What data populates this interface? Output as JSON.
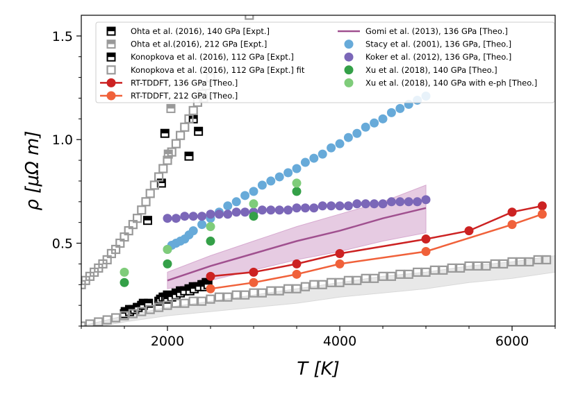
{
  "chart_data": {
    "type": "scatter",
    "xlabel": "T [K]",
    "ylabel": "ρ [μΩ m]",
    "xlim": [
      1000,
      6500
    ],
    "ylim": [
      0.1,
      1.6
    ],
    "xticks": [
      2000,
      4000,
      6000
    ],
    "xtick_labels": [
      "2000",
      "4000",
      "6000"
    ],
    "yticks": [
      0.5,
      1.0,
      1.5
    ],
    "ytick_labels": [
      "0.5",
      "1.0",
      "1.5"
    ],
    "grid": false,
    "legend_position": "top",
    "series": [
      {
        "name": "Ohta et al. (2016), 140 GPa [Expt.]",
        "color": "#000000",
        "marker": "half-square",
        "x": [
          1510,
          1560,
          1600,
          1650,
          1700,
          1720,
          1900,
          1920,
          1950,
          1980,
          2000,
          2100,
          2150,
          2200,
          2250,
          2300,
          2350,
          2400,
          2420,
          2430,
          2450,
          2460,
          1770,
          1930,
          1970,
          2250,
          2300,
          2360
        ],
        "y": [
          0.17,
          0.18,
          0.18,
          0.19,
          0.2,
          0.21,
          0.22,
          0.23,
          0.24,
          0.24,
          0.25,
          0.26,
          0.27,
          0.27,
          0.28,
          0.29,
          0.29,
          0.3,
          0.3,
          0.3,
          0.31,
          0.31,
          0.61,
          0.79,
          1.03,
          0.92,
          1.1,
          1.04
        ]
      },
      {
        "name": "Ohta et al.(2016), 212 GPa [Expt.]",
        "color": "#999999",
        "marker": "half-square",
        "x": [
          2010,
          2040,
          2420
        ],
        "y": [
          0.93,
          1.15,
          1.2
        ]
      },
      {
        "name": "Konopkova et al. (2016), 112 GPa [Expt.]",
        "color": "#000000",
        "marker": "half-square",
        "x": [
          1500,
          1560,
          1620,
          1660,
          1720,
          1780,
          2000,
          2050,
          2100,
          2150,
          2200,
          2260,
          2310,
          2370,
          2430,
          2470
        ],
        "y": [
          0.16,
          0.17,
          0.18,
          0.19,
          0.2,
          0.21,
          0.23,
          0.24,
          0.25,
          0.26,
          0.27,
          0.27,
          0.28,
          0.29,
          0.29,
          0.3
        ]
      },
      {
        "name": "Konopkova et al. (2016), 112 GPa [Expt.] fit",
        "color": "#999999",
        "marker": "open-square",
        "x": [
          1000,
          1050,
          1100,
          1150,
          1200,
          1250,
          1300,
          1350,
          1400,
          1450,
          1500,
          1550,
          1600,
          1650,
          1700,
          1750,
          1800,
          1850,
          1900,
          1950,
          2000,
          2050,
          2100,
          2150,
          2200,
          2250,
          2300,
          2350,
          2400,
          2450,
          2500,
          2950,
          1000,
          1100,
          1200,
          1300,
          1400,
          1500,
          1600,
          1700,
          1800,
          1900,
          2000,
          2100,
          2200,
          2300,
          2400,
          2500,
          2600,
          2700,
          2800,
          2900,
          3000,
          3100,
          3200,
          3300,
          3400,
          3500,
          3600,
          3700,
          3800,
          3900,
          4000,
          4100,
          4200,
          4300,
          4400,
          4500,
          4600,
          4700,
          4800,
          4900,
          5000,
          5100,
          5200,
          5300,
          5400,
          5500,
          5600,
          5700,
          5800,
          5900,
          6000,
          6100,
          6200,
          6300,
          6400
        ],
        "y": [
          0.3,
          0.32,
          0.34,
          0.36,
          0.38,
          0.4,
          0.42,
          0.45,
          0.47,
          0.5,
          0.53,
          0.56,
          0.59,
          0.62,
          0.66,
          0.7,
          0.74,
          0.78,
          0.82,
          0.86,
          0.9,
          0.94,
          0.98,
          1.02,
          1.06,
          1.1,
          1.14,
          1.18,
          1.22,
          1.26,
          1.3,
          1.6,
          0.1,
          0.11,
          0.12,
          0.13,
          0.14,
          0.15,
          0.16,
          0.17,
          0.18,
          0.19,
          0.2,
          0.21,
          0.21,
          0.22,
          0.22,
          0.23,
          0.24,
          0.24,
          0.25,
          0.25,
          0.26,
          0.26,
          0.27,
          0.27,
          0.28,
          0.28,
          0.29,
          0.3,
          0.3,
          0.31,
          0.31,
          0.32,
          0.32,
          0.33,
          0.33,
          0.34,
          0.34,
          0.35,
          0.35,
          0.36,
          0.36,
          0.37,
          0.37,
          0.38,
          0.38,
          0.39,
          0.39,
          0.39,
          0.4,
          0.4,
          0.41,
          0.41,
          0.41,
          0.42,
          0.42
        ]
      },
      {
        "name": "RT-TDDFT, 136 GPa [Theo.]",
        "color": "#cc2222",
        "marker": "line-circle",
        "x": [
          2500,
          3000,
          3500,
          4000,
          5000,
          5500,
          6000,
          6350
        ],
        "y": [
          0.34,
          0.36,
          0.4,
          0.45,
          0.52,
          0.56,
          0.65,
          0.68
        ]
      },
      {
        "name": "RT-TDDFT, 212 GPa [Theo.]",
        "color": "#f0613a",
        "marker": "line-circle",
        "x": [
          2500,
          3000,
          3500,
          4000,
          5000,
          6000,
          6350
        ],
        "y": [
          0.28,
          0.31,
          0.35,
          0.4,
          0.46,
          0.59,
          0.64
        ]
      },
      {
        "name": "Gomi et al. (2013), 136 GPa [Theo.]",
        "color": "#a0508f",
        "marker": "line",
        "x": [
          2000,
          2500,
          3000,
          3500,
          4000,
          4500,
          5000
        ],
        "y": [
          0.32,
          0.39,
          0.45,
          0.51,
          0.56,
          0.62,
          0.67
        ]
      },
      {
        "name": "Stacy et al. (2001), 136 GPa, [Theo.]",
        "color": "#67aad9",
        "marker": "circle",
        "x": [
          2000,
          2050,
          2100,
          2150,
          2200,
          2250,
          2300,
          2400,
          2500,
          2600,
          2700,
          2800,
          2900,
          3000,
          3100,
          3200,
          3300,
          3400,
          3500,
          3600,
          3700,
          3800,
          3900,
          4000,
          4100,
          4200,
          4300,
          4400,
          4500,
          4600,
          4700,
          4800,
          4900,
          5000
        ],
        "y": [
          0.47,
          0.49,
          0.5,
          0.51,
          0.52,
          0.54,
          0.56,
          0.59,
          0.62,
          0.65,
          0.68,
          0.7,
          0.73,
          0.75,
          0.78,
          0.8,
          0.82,
          0.84,
          0.86,
          0.89,
          0.91,
          0.93,
          0.96,
          0.98,
          1.01,
          1.03,
          1.06,
          1.08,
          1.1,
          1.13,
          1.15,
          1.17,
          1.19,
          1.21
        ]
      },
      {
        "name": "Koker et al. (2012), 136 GPa, [Theo.]",
        "color": "#7b67b8",
        "marker": "circle",
        "x": [
          2000,
          2100,
          2200,
          2300,
          2400,
          2500,
          2600,
          2700,
          2800,
          2900,
          3000,
          3100,
          3200,
          3300,
          3400,
          3500,
          3600,
          3700,
          3800,
          3900,
          4000,
          4100,
          4200,
          4300,
          4400,
          4500,
          4600,
          4700,
          4800,
          4900,
          5000
        ],
        "y": [
          0.62,
          0.62,
          0.63,
          0.63,
          0.63,
          0.64,
          0.64,
          0.64,
          0.65,
          0.65,
          0.65,
          0.66,
          0.66,
          0.66,
          0.66,
          0.67,
          0.67,
          0.67,
          0.68,
          0.68,
          0.68,
          0.68,
          0.69,
          0.69,
          0.69,
          0.69,
          0.7,
          0.7,
          0.7,
          0.7,
          0.71
        ]
      },
      {
        "name": "Xu et al. (2018), 140 GPa [Theo.]",
        "color": "#34a048",
        "marker": "circle",
        "x": [
          1500,
          2000,
          2500,
          3000,
          3500
        ],
        "y": [
          0.31,
          0.4,
          0.51,
          0.63,
          0.75
        ]
      },
      {
        "name": "Xu et al. (2018), 140 GPa with e-ph [Theo.]",
        "color": "#7fcc7a",
        "marker": "circle",
        "x": [
          1500,
          2000,
          2500,
          3000,
          3500
        ],
        "y": [
          0.36,
          0.47,
          0.58,
          0.69,
          0.79
        ]
      }
    ],
    "bands": [
      {
        "color": "#d6a9cf",
        "x": [
          2000,
          2500,
          3000,
          3500,
          4000,
          4500,
          5000
        ],
        "lower": [
          0.28,
          0.32,
          0.37,
          0.42,
          0.46,
          0.51,
          0.55
        ],
        "upper": [
          0.36,
          0.44,
          0.51,
          0.58,
          0.64,
          0.7,
          0.78
        ]
      },
      {
        "color": "#d9d9d9",
        "x": [
          1000,
          1500,
          2000,
          2500,
          3000,
          3500,
          4000,
          4500,
          5000,
          5500,
          6000,
          6500
        ],
        "lower": [
          0.08,
          0.12,
          0.15,
          0.17,
          0.19,
          0.21,
          0.24,
          0.26,
          0.28,
          0.31,
          0.33,
          0.36
        ],
        "upper": [
          0.1,
          0.15,
          0.19,
          0.22,
          0.25,
          0.28,
          0.31,
          0.34,
          0.36,
          0.39,
          0.41,
          0.44
        ]
      }
    ]
  }
}
